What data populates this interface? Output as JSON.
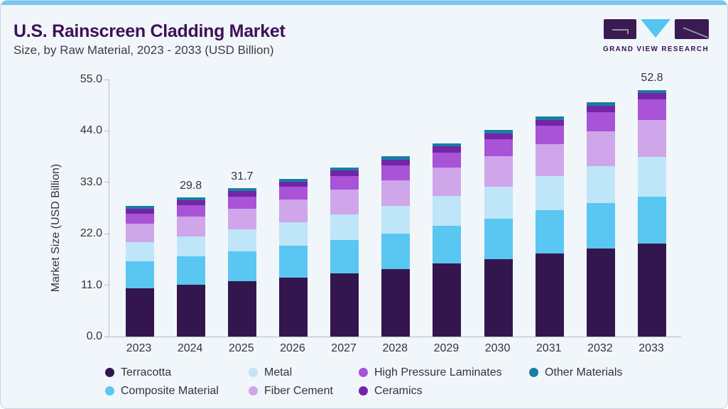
{
  "card": {
    "title": "U.S. Rainscreen Cladding Market",
    "subtitle": "Size, by Raw Material, 2023 - 2033 (USD Billion)",
    "accent_color": "#74c7f0",
    "background_color": "#f1f6fa",
    "title_color": "#3d1157"
  },
  "logo": {
    "text": "GRAND VIEW RESEARCH",
    "dark_color": "#3a1b52",
    "blue_color": "#55c4f1"
  },
  "chart_data": {
    "type": "bar",
    "stacked": true,
    "title": "U.S. Rainscreen Cladding Market Size, by Raw Material, 2023 - 2033 (USD Billion)",
    "xlabel": "",
    "ylabel": "Market Size (USD Billion)",
    "ylim": [
      0,
      55
    ],
    "yticks": [
      0,
      11,
      22,
      33,
      44,
      55
    ],
    "ytick_labels": [
      "0.0",
      "11.0",
      "22.0",
      "33.0",
      "44.0",
      "55.0"
    ],
    "grid": false,
    "legend_position": "bottom",
    "categories": [
      "2023",
      "2024",
      "2025",
      "2026",
      "2027",
      "2028",
      "2029",
      "2030",
      "2031",
      "2032",
      "2033"
    ],
    "series": [
      {
        "name": "Terracotta",
        "color": "#33164d",
        "values": [
          10.4,
          11.1,
          11.8,
          12.6,
          13.5,
          14.4,
          15.6,
          16.6,
          17.8,
          18.8,
          19.9
        ]
      },
      {
        "name": "Composite Material",
        "color": "#5ac6f2",
        "values": [
          5.7,
          6.0,
          6.4,
          6.8,
          7.2,
          7.6,
          8.1,
          8.6,
          9.2,
          9.7,
          10.1
        ]
      },
      {
        "name": "Metal",
        "color": "#bfe5f8",
        "values": [
          4.1,
          4.4,
          4.7,
          5.1,
          5.5,
          6.0,
          6.4,
          6.9,
          7.4,
          8.0,
          8.5
        ]
      },
      {
        "name": "Fiber Cement",
        "color": "#cfa6ea",
        "values": [
          3.9,
          4.2,
          4.5,
          4.8,
          5.2,
          5.5,
          6.0,
          6.5,
          6.8,
          7.4,
          7.8
        ]
      },
      {
        "name": "High Pressure Laminates",
        "color": "#a953d7",
        "values": [
          2.2,
          2.4,
          2.5,
          2.7,
          2.9,
          3.1,
          3.3,
          3.6,
          3.9,
          4.1,
          4.4
        ]
      },
      {
        "name": "Ceramics",
        "color": "#7226a6",
        "values": [
          1.1,
          1.1,
          1.2,
          1.2,
          1.2,
          1.3,
          1.3,
          1.3,
          1.3,
          1.4,
          1.4
        ]
      },
      {
        "name": "Other Materials",
        "color": "#187fa2",
        "values": [
          0.6,
          0.6,
          0.6,
          0.6,
          0.6,
          0.7,
          0.7,
          0.7,
          0.7,
          0.7,
          0.7
        ]
      }
    ],
    "totals": [
      28.0,
      29.8,
      31.7,
      33.8,
      36.1,
      38.6,
      41.4,
      44.2,
      47.1,
      50.1,
      52.8
    ],
    "bar_labels": [
      "",
      "29.8",
      "31.7",
      "",
      "",
      "",
      "",
      "",
      "",
      "",
      "52.8"
    ],
    "legend_order": [
      "Terracotta",
      "Metal",
      "High Pressure Laminates",
      "Other Materials",
      "Composite Material",
      "Fiber Cement",
      "Ceramics"
    ]
  }
}
